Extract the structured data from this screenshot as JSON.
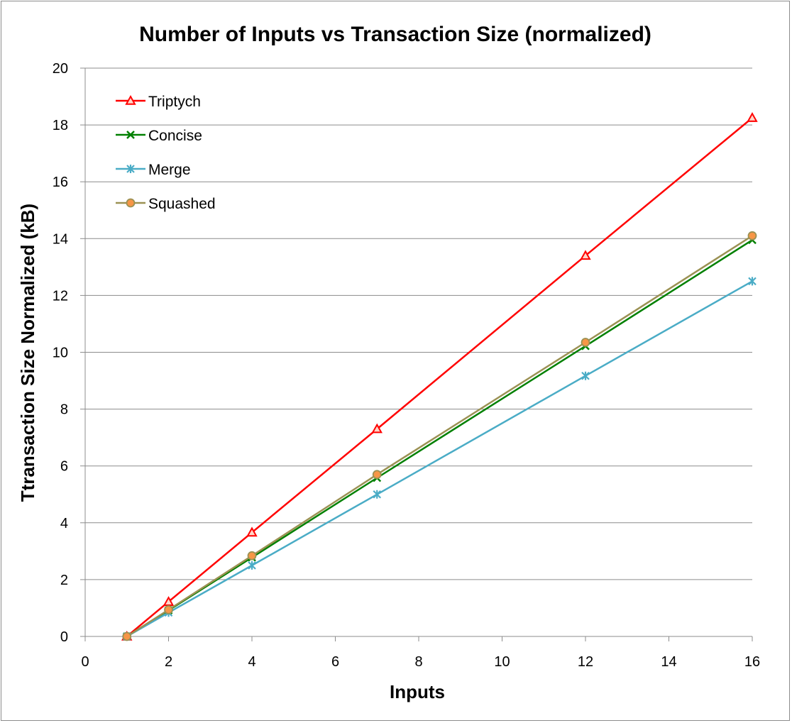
{
  "chart_data": {
    "type": "line",
    "title": "Number of Inputs vs Transaction Size (normalized)",
    "xlabel": "Inputs",
    "ylabel": "Ttransaction Size Normalized (kB)",
    "xlim": [
      0,
      16
    ],
    "ylim": [
      0,
      20
    ],
    "xticks": [
      "0",
      "2",
      "4",
      "6",
      "8",
      "10",
      "12",
      "14",
      "16"
    ],
    "yticks": [
      "0",
      "2",
      "4",
      "6",
      "8",
      "10",
      "12",
      "14",
      "16",
      "18",
      "20"
    ],
    "grid": "horizontal",
    "legend_position": "top-left",
    "x": [
      1,
      2,
      4,
      7,
      12,
      16
    ],
    "series": [
      {
        "name": "Triptych",
        "values": [
          0,
          1.22,
          3.66,
          7.3,
          13.4,
          18.25
        ],
        "color": "#ff0000",
        "marker": "triangle"
      },
      {
        "name": "Concise",
        "values": [
          0,
          0.92,
          2.78,
          5.58,
          10.22,
          13.95
        ],
        "color": "#008000",
        "marker": "x"
      },
      {
        "name": "Merge",
        "values": [
          0,
          0.84,
          2.5,
          5.0,
          9.17,
          12.5
        ],
        "color": "#4aacc6",
        "marker": "star"
      },
      {
        "name": "Squashed",
        "values": [
          0,
          0.94,
          2.84,
          5.7,
          10.35,
          14.1
        ],
        "color": "#9b9153",
        "marker": "circle",
        "marker_fill": "#f79646"
      }
    ]
  }
}
